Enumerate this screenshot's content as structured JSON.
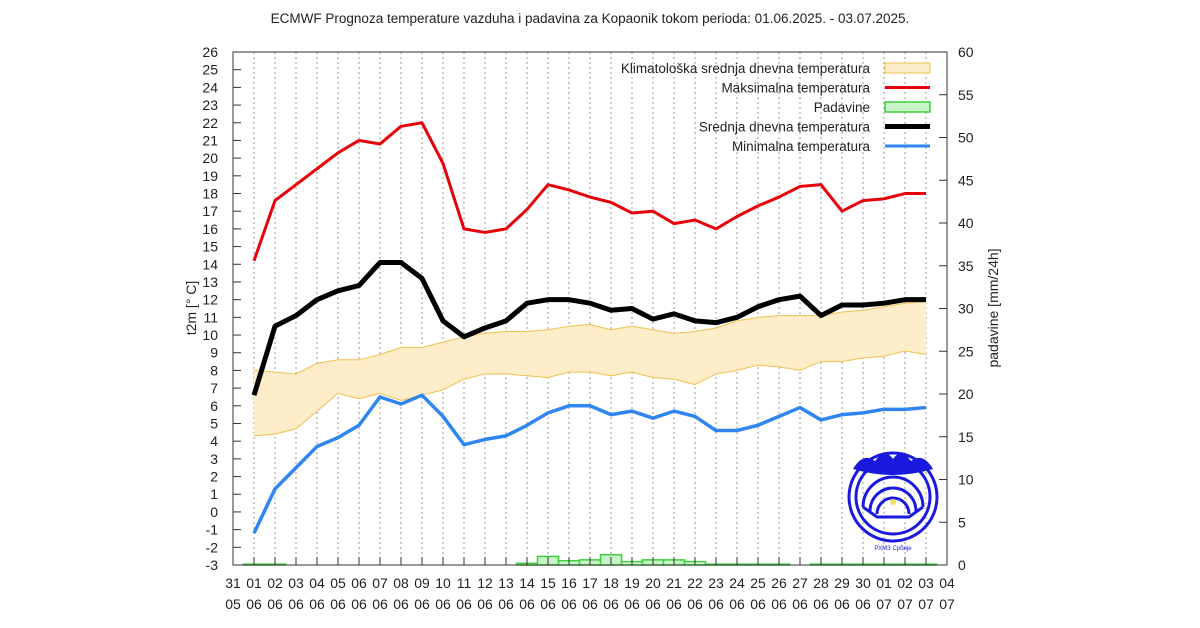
{
  "chart_data": {
    "type": "line",
    "title": "ECMWF Prognoza temperature vazduha i padavina za Kopaonik tokom perioda: 01.06.2025. - 03.07.2025.",
    "ylabel": "t2m [° C]",
    "y2label": "padavine [mm/24h]",
    "ylim": [
      -3,
      26
    ],
    "y2lim": [
      0,
      60
    ],
    "yticks": [
      -3,
      -2,
      -1,
      0,
      1,
      2,
      3,
      4,
      5,
      6,
      7,
      8,
      9,
      10,
      11,
      12,
      13,
      14,
      15,
      16,
      17,
      18,
      19,
      20,
      21,
      22,
      23,
      24,
      25,
      26
    ],
    "y2ticks": [
      0,
      5,
      10,
      15,
      20,
      25,
      30,
      35,
      40,
      45,
      50,
      55,
      60
    ],
    "xtick_days": [
      "31",
      "01",
      "02",
      "03",
      "04",
      "05",
      "06",
      "07",
      "08",
      "09",
      "10",
      "11",
      "12",
      "13",
      "14",
      "15",
      "16",
      "17",
      "18",
      "19",
      "20",
      "21",
      "22",
      "23",
      "24",
      "25",
      "26",
      "27",
      "28",
      "29",
      "30",
      "01",
      "02",
      "03",
      "04"
    ],
    "xtick_months": [
      "05",
      "06",
      "06",
      "06",
      "06",
      "06",
      "06",
      "06",
      "06",
      "06",
      "06",
      "06",
      "06",
      "06",
      "06",
      "06",
      "06",
      "06",
      "06",
      "06",
      "06",
      "06",
      "06",
      "06",
      "06",
      "06",
      "06",
      "06",
      "06",
      "06",
      "06",
      "07",
      "07",
      "07",
      "07"
    ],
    "grid": "vertical-dotted",
    "legend_placement": "top-right",
    "series": [
      {
        "name": "Klimatološka srednja dnevna temperatura",
        "kind": "band",
        "color": "#fdedc8",
        "edge": "#f0c050",
        "upper": [
          8.0,
          7.9,
          7.8,
          8.4,
          8.6,
          8.6,
          8.9,
          9.3,
          9.3,
          9.6,
          9.9,
          10.1,
          10.2,
          10.2,
          10.3,
          10.5,
          10.6,
          10.3,
          10.5,
          10.3,
          10.1,
          10.2,
          10.4,
          10.8,
          11.0,
          11.1,
          11.1,
          11.1,
          11.3,
          11.4,
          11.6,
          11.8,
          11.9
        ],
        "lower": [
          4.3,
          4.4,
          4.7,
          5.7,
          6.7,
          6.4,
          6.7,
          6.3,
          6.6,
          6.9,
          7.5,
          7.8,
          7.8,
          7.7,
          7.6,
          7.9,
          7.9,
          7.7,
          7.9,
          7.6,
          7.5,
          7.2,
          7.8,
          8.0,
          8.3,
          8.2,
          8.0,
          8.5,
          8.5,
          8.7,
          8.8,
          9.1,
          8.9
        ]
      },
      {
        "name": "Maksimalna temperatura",
        "kind": "line",
        "color": "#e8000b",
        "values": [
          14.2,
          17.6,
          18.5,
          19.4,
          20.3,
          21.0,
          20.8,
          21.8,
          22.0,
          19.7,
          16.0,
          15.8,
          16.0,
          17.1,
          18.5,
          18.2,
          17.8,
          17.5,
          16.9,
          17.0,
          16.3,
          16.5,
          16.0,
          16.7,
          17.3,
          17.8,
          18.4,
          18.5,
          17.0,
          17.6,
          17.7,
          18.0,
          18.0
        ]
      },
      {
        "name": "Padavine",
        "kind": "bar",
        "axis": "y2",
        "color": "#40d040",
        "fill": "#c8f5c8",
        "values": [
          0.1,
          0.1,
          0,
          0,
          0,
          0,
          0,
          0,
          0,
          0,
          0,
          0,
          0,
          0.2,
          1.0,
          0.5,
          0.6,
          1.2,
          0.4,
          0.6,
          0.6,
          0.4,
          0.1,
          0.1,
          0.1,
          0.1,
          0,
          0.1,
          0.1,
          0.1,
          0.1,
          0.1,
          0.1
        ]
      },
      {
        "name": "Srednja dnevna temperatura",
        "kind": "line",
        "color": "#000000",
        "values": [
          6.6,
          10.5,
          11.1,
          12.0,
          12.5,
          12.8,
          14.1,
          14.1,
          13.2,
          10.8,
          9.9,
          10.4,
          10.8,
          11.8,
          12.0,
          12.0,
          11.8,
          11.4,
          11.5,
          10.9,
          11.2,
          10.8,
          10.7,
          11.0,
          11.6,
          12.0,
          12.2,
          11.1,
          11.7,
          11.7,
          11.8,
          12.0,
          12.0
        ]
      },
      {
        "name": "Minimalna temperatura",
        "kind": "line",
        "color": "#2f86f0",
        "values": [
          -1.2,
          1.3,
          2.5,
          3.7,
          4.2,
          4.9,
          6.5,
          6.1,
          6.6,
          5.4,
          3.8,
          4.1,
          4.3,
          4.9,
          5.6,
          6.0,
          6.0,
          5.5,
          5.7,
          5.3,
          5.7,
          5.4,
          4.6,
          4.6,
          4.9,
          5.4,
          5.9,
          5.2,
          5.5,
          5.6,
          5.8,
          5.8,
          5.9
        ]
      }
    ],
    "legend_order": [
      0,
      1,
      2,
      3,
      4
    ],
    "logo_text": "РХМЗ Србије"
  }
}
